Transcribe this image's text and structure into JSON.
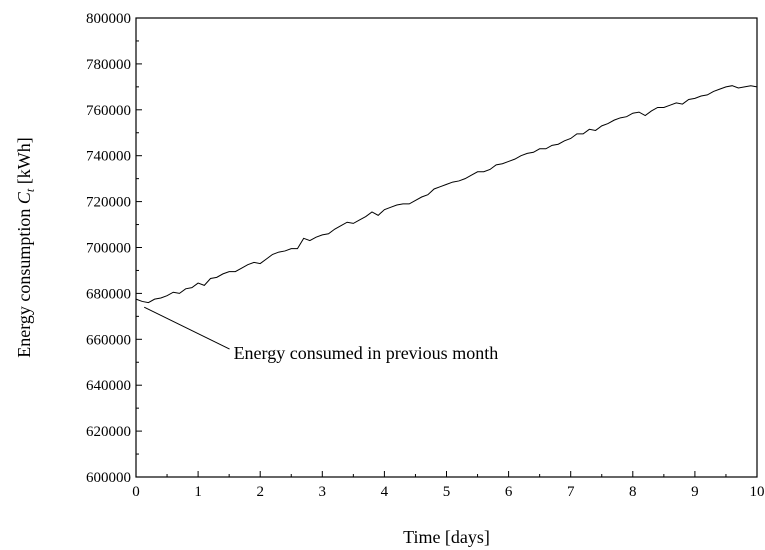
{
  "chart_data": {
    "type": "line",
    "title": "",
    "xlabel": "Time [days]",
    "ylabel_main": "Energy consumption ",
    "ylabel_symbol": "C",
    "ylabel_subscript": "t",
    "ylabel_unit": " [kWh]",
    "xlim": [
      0,
      10
    ],
    "ylim": [
      600000,
      800000
    ],
    "x_ticks": [
      0,
      1,
      2,
      3,
      4,
      5,
      6,
      7,
      8,
      9,
      10
    ],
    "y_ticks": [
      600000,
      620000,
      640000,
      660000,
      680000,
      700000,
      720000,
      740000,
      760000,
      780000,
      800000
    ],
    "x_tick_labels": [
      "0",
      "1",
      "2",
      "3",
      "4",
      "5",
      "6",
      "7",
      "8",
      "9",
      "10"
    ],
    "y_tick_labels": [
      "600000",
      "620000",
      "640000",
      "660000",
      "680000",
      "700000",
      "720000",
      "740000",
      "760000",
      "780000",
      "800000"
    ],
    "grid": false,
    "annotation": {
      "text": "Energy consumed in previous month",
      "x": 0.1,
      "y": 677500,
      "text_x": 0.75,
      "text_y": 654000
    },
    "series": [
      {
        "x": [
          0,
          0.1,
          0.2,
          0.3,
          0.4,
          0.5,
          0.6,
          0.7,
          0.8,
          0.9,
          1.0,
          1.1,
          1.2,
          1.3,
          1.4,
          1.5,
          1.6,
          1.7,
          1.8,
          1.9,
          2.0,
          2.1,
          2.2,
          2.3,
          2.4,
          2.5,
          2.6,
          2.7,
          2.8,
          2.9,
          3.0,
          3.1,
          3.2,
          3.3,
          3.4,
          3.5,
          3.6,
          3.7,
          3.8,
          3.9,
          4.0,
          4.1,
          4.2,
          4.3,
          4.4,
          4.5,
          4.6,
          4.7,
          4.8,
          4.9,
          5.0,
          5.1,
          5.2,
          5.3,
          5.4,
          5.5,
          5.6,
          5.7,
          5.8,
          5.9,
          6.0,
          6.1,
          6.2,
          6.3,
          6.4,
          6.5,
          6.6,
          6.7,
          6.8,
          6.9,
          7.0,
          7.1,
          7.2,
          7.3,
          7.4,
          7.5,
          7.6,
          7.7,
          7.8,
          7.9,
          8.0,
          8.1,
          8.2,
          8.3,
          8.4,
          8.5,
          8.6,
          8.7,
          8.8,
          8.9,
          9.0,
          9.1,
          9.2,
          9.3,
          9.4,
          9.5,
          9.6,
          9.7,
          9.8,
          9.9,
          10.0
        ],
        "y": [
          677500,
          676500,
          676000,
          677500,
          678000,
          679000,
          680500,
          680000,
          682000,
          682500,
          684500,
          683500,
          686500,
          687000,
          688500,
          689500,
          689500,
          691000,
          692500,
          693500,
          693000,
          695000,
          697000,
          698000,
          698500,
          699500,
          699500,
          704000,
          703000,
          704500,
          705500,
          706000,
          708000,
          709500,
          711000,
          710500,
          712000,
          713500,
          715500,
          714000,
          716500,
          717500,
          718500,
          719000,
          719000,
          720500,
          722000,
          723000,
          725500,
          726500,
          727500,
          728500,
          729000,
          730000,
          731500,
          733000,
          733000,
          734000,
          736000,
          736500,
          737500,
          738500,
          740000,
          741000,
          741500,
          743000,
          743000,
          744500,
          745000,
          746500,
          747500,
          749500,
          749500,
          751500,
          751000,
          753000,
          754000,
          755500,
          756500,
          757000,
          758500,
          759000,
          757500,
          759500,
          761000,
          761000,
          762000,
          763000,
          762500,
          764500,
          765000,
          766000,
          766500,
          768000,
          769000,
          770000,
          770500,
          769500,
          770000,
          770500,
          770000
        ]
      }
    ]
  }
}
